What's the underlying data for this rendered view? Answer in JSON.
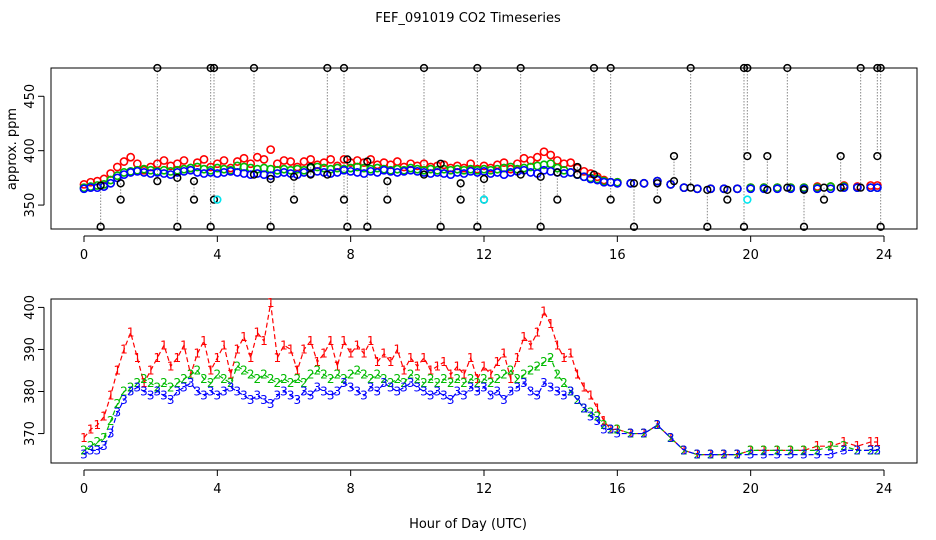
{
  "figure": {
    "title": "FEF_091019  CO2 Timeseries",
    "xlabel": "Hour of Day (UTC)",
    "colors": {
      "black": "#000000",
      "red": "#ff0000",
      "green": "#00bb00",
      "blue": "#0000ff",
      "cyan": "#00e5ee",
      "guide": "#888888"
    }
  },
  "chart_data": [
    {
      "type": "scatter",
      "ylabel": "approx. ppm",
      "xlim": [
        0,
        24
      ],
      "ylim": [
        328,
        476
      ],
      "xticks": [
        0,
        4,
        8,
        12,
        16,
        20,
        24
      ],
      "yticks": [
        350,
        400,
        450
      ],
      "marker": "open-circle",
      "series": [
        {
          "color": "black",
          "role": "spikes",
          "x": [
            0.5,
            1.1,
            2.2,
            2.8,
            3.3,
            3.8,
            3.9,
            5.1,
            5.6,
            6.3,
            6.8,
            7.3,
            7.8,
            7.9,
            8.5,
            9.1,
            10.2,
            10.7,
            11.3,
            11.8,
            12.0,
            13.1,
            13.7,
            14.2,
            14.8,
            15.3,
            15.8,
            16.5,
            17.2,
            17.7,
            18.2,
            18.7,
            19.3,
            19.8,
            19.9,
            20.5,
            21.1,
            21.6,
            22.2,
            22.7,
            23.3,
            23.8,
            23.9
          ],
          "y_top": [
            368,
            370,
            476,
            375,
            372,
            476,
            476,
            476,
            374,
            376,
            378,
            476,
            476,
            392,
            390,
            372,
            476,
            388,
            370,
            476,
            374,
            476,
            376,
            380,
            378,
            476,
            476,
            370,
            370,
            372,
            476,
            364,
            364,
            476,
            476,
            364,
            476,
            364,
            366,
            366,
            476,
            476,
            476
          ],
          "y_bottom": [
            330,
            355,
            372,
            330,
            355,
            330,
            355,
            378,
            330,
            355,
            385,
            378,
            355,
            330,
            330,
            355,
            378,
            330,
            355,
            330,
            355,
            378,
            330,
            355,
            385,
            378,
            355,
            330,
            355,
            395,
            366,
            330,
            355,
            330,
            395,
            395,
            366,
            330,
            355,
            395,
            366,
            395,
            330
          ]
        },
        {
          "color": "red",
          "role": "raw_1"
        },
        {
          "color": "green",
          "role": "raw_2"
        },
        {
          "color": "blue",
          "role": "raw_3"
        },
        {
          "color": "cyan",
          "role": "flag",
          "x": [
            4.0,
            12.0,
            19.9
          ],
          "y": [
            355,
            355,
            355
          ]
        }
      ]
    },
    {
      "type": "scatter",
      "ylabel": "",
      "xlim": [
        0,
        24
      ],
      "ylim": [
        363,
        402
      ],
      "xticks": [
        0,
        4,
        8,
        12,
        16,
        20,
        24
      ],
      "yticks": [
        370,
        380,
        390,
        400
      ],
      "marker": "digit",
      "series": [
        {
          "name": "1",
          "color": "red",
          "x": [
            0.0,
            0.2,
            0.4,
            0.6,
            0.8,
            1.0,
            1.2,
            1.4,
            1.6,
            1.8,
            2.0,
            2.2,
            2.4,
            2.6,
            2.8,
            3.0,
            3.2,
            3.4,
            3.6,
            3.8,
            4.0,
            4.2,
            4.4,
            4.6,
            4.8,
            5.0,
            5.2,
            5.4,
            5.6,
            5.8,
            6.0,
            6.2,
            6.4,
            6.6,
            6.8,
            7.0,
            7.2,
            7.4,
            7.6,
            7.8,
            8.0,
            8.2,
            8.4,
            8.6,
            8.8,
            9.0,
            9.2,
            9.4,
            9.6,
            9.8,
            10.0,
            10.2,
            10.4,
            10.6,
            10.8,
            11.0,
            11.2,
            11.4,
            11.6,
            11.8,
            12.0,
            12.2,
            12.4,
            12.6,
            12.8,
            13.0,
            13.2,
            13.4,
            13.6,
            13.8,
            14.0,
            14.2,
            14.4,
            14.6,
            14.8,
            15.0,
            15.2,
            15.4,
            15.6,
            15.8,
            16.0,
            16.4,
            16.8,
            17.2,
            17.6,
            18.0,
            18.4,
            18.8,
            19.2,
            19.6,
            20.0,
            20.4,
            20.8,
            21.2,
            21.6,
            22.0,
            22.4,
            22.8,
            23.2,
            23.6,
            23.8
          ],
          "y": [
            369,
            371,
            372,
            374,
            379,
            385,
            390,
            394,
            388,
            382,
            385,
            388,
            391,
            386,
            388,
            391,
            384,
            389,
            392,
            385,
            388,
            391,
            384,
            390,
            393,
            388,
            394,
            392,
            401,
            388,
            391,
            390,
            385,
            390,
            392,
            387,
            389,
            392,
            386,
            392,
            389,
            391,
            389,
            392,
            387,
            389,
            387,
            390,
            385,
            388,
            386,
            388,
            385,
            386,
            387,
            384,
            386,
            384,
            388,
            383,
            386,
            384,
            387,
            389,
            383,
            388,
            393,
            391,
            394,
            399,
            396,
            391,
            388,
            389,
            384,
            381,
            379,
            376,
            373,
            371,
            371,
            370,
            370,
            372,
            369,
            366,
            365,
            365,
            365,
            365,
            366,
            366,
            366,
            366,
            366,
            367,
            367,
            368,
            367,
            368,
            368
          ]
        },
        {
          "name": "2",
          "color": "green",
          "x": [
            0.0,
            0.2,
            0.4,
            0.6,
            0.8,
            1.0,
            1.2,
            1.4,
            1.6,
            1.8,
            2.0,
            2.2,
            2.4,
            2.6,
            2.8,
            3.0,
            3.2,
            3.4,
            3.6,
            3.8,
            4.0,
            4.2,
            4.4,
            4.6,
            4.8,
            5.0,
            5.2,
            5.4,
            5.6,
            5.8,
            6.0,
            6.2,
            6.4,
            6.6,
            6.8,
            7.0,
            7.2,
            7.4,
            7.6,
            7.8,
            8.0,
            8.2,
            8.4,
            8.6,
            8.8,
            9.0,
            9.2,
            9.4,
            9.6,
            9.8,
            10.0,
            10.2,
            10.4,
            10.6,
            10.8,
            11.0,
            11.2,
            11.4,
            11.6,
            11.8,
            12.0,
            12.2,
            12.4,
            12.6,
            12.8,
            13.0,
            13.2,
            13.4,
            13.6,
            13.8,
            14.0,
            14.2,
            14.4,
            14.6,
            14.8,
            15.0,
            15.2,
            15.4,
            15.6,
            15.8,
            16.0,
            16.4,
            16.8,
            17.2,
            17.6,
            18.0,
            18.4,
            18.8,
            19.2,
            19.6,
            20.0,
            20.4,
            20.8,
            21.2,
            21.6,
            22.0,
            22.4,
            22.8,
            23.2,
            23.6,
            23.8
          ],
          "y": [
            366,
            367,
            368,
            369,
            373,
            377,
            380,
            381,
            382,
            383,
            382,
            381,
            382,
            381,
            382,
            383,
            384,
            385,
            383,
            382,
            384,
            383,
            382,
            386,
            385,
            384,
            383,
            384,
            383,
            382,
            383,
            382,
            383,
            382,
            384,
            385,
            384,
            383,
            384,
            383,
            384,
            385,
            384,
            383,
            384,
            383,
            382,
            383,
            382,
            384,
            383,
            382,
            383,
            382,
            383,
            382,
            383,
            382,
            383,
            382,
            383,
            382,
            383,
            384,
            385,
            383,
            384,
            385,
            386,
            387,
            388,
            384,
            382,
            380,
            378,
            376,
            375,
            374,
            372,
            371,
            371,
            370,
            370,
            372,
            369,
            366,
            365,
            365,
            365,
            365,
            366,
            366,
            366,
            366,
            366,
            366,
            367,
            367,
            366,
            366,
            366
          ]
        },
        {
          "name": "3",
          "color": "blue",
          "x": [
            0.0,
            0.2,
            0.4,
            0.6,
            0.8,
            1.0,
            1.2,
            1.4,
            1.6,
            1.8,
            2.0,
            2.2,
            2.4,
            2.6,
            2.8,
            3.0,
            3.2,
            3.4,
            3.6,
            3.8,
            4.0,
            4.2,
            4.4,
            4.6,
            4.8,
            5.0,
            5.2,
            5.4,
            5.6,
            5.8,
            6.0,
            6.2,
            6.4,
            6.6,
            6.8,
            7.0,
            7.2,
            7.4,
            7.6,
            7.8,
            8.0,
            8.2,
            8.4,
            8.6,
            8.8,
            9.0,
            9.2,
            9.4,
            9.6,
            9.8,
            10.0,
            10.2,
            10.4,
            10.6,
            10.8,
            11.0,
            11.2,
            11.4,
            11.6,
            11.8,
            12.0,
            12.2,
            12.4,
            12.6,
            12.8,
            13.0,
            13.2,
            13.4,
            13.6,
            13.8,
            14.0,
            14.2,
            14.4,
            14.6,
            14.8,
            15.0,
            15.2,
            15.4,
            15.6,
            15.8,
            16.0,
            16.4,
            16.8,
            17.2,
            17.6,
            18.0,
            18.4,
            18.8,
            19.2,
            19.6,
            20.0,
            20.4,
            20.8,
            21.2,
            21.6,
            22.0,
            22.4,
            22.8,
            23.2,
            23.6,
            23.8
          ],
          "y": [
            365,
            366,
            366,
            367,
            370,
            375,
            378,
            380,
            381,
            380,
            379,
            380,
            379,
            378,
            380,
            381,
            382,
            380,
            379,
            380,
            379,
            380,
            381,
            380,
            379,
            378,
            379,
            378,
            377,
            379,
            380,
            379,
            378,
            380,
            379,
            381,
            380,
            379,
            380,
            382,
            381,
            380,
            379,
            381,
            380,
            382,
            381,
            380,
            381,
            382,
            381,
            380,
            379,
            380,
            379,
            378,
            380,
            379,
            381,
            380,
            381,
            379,
            380,
            378,
            380,
            381,
            382,
            380,
            379,
            382,
            381,
            380,
            379,
            380,
            378,
            376,
            374,
            373,
            371,
            371,
            370,
            370,
            370,
            372,
            369,
            366,
            365,
            365,
            365,
            365,
            365,
            365,
            365,
            365,
            365,
            365,
            365,
            366,
            366,
            366,
            366
          ]
        }
      ]
    }
  ]
}
